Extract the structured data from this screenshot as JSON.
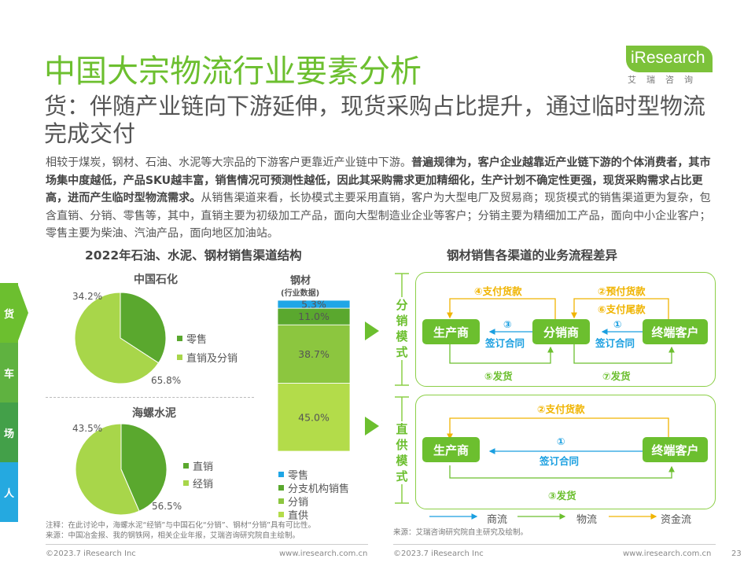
{
  "header": {
    "title": "中国大宗物流行业要素分析",
    "subtitle": "货：伴随产业链向下游延伸，现货采购占比提升，通过临时型物流完成交付",
    "logo_text": "iResearch",
    "logo_cn": "艾瑞咨询"
  },
  "body": {
    "p1": "相较于煤炭，钢材、石油、水泥等大宗品的下游客户更靠近产业链中下游。",
    "p2": "普遍规律为，客户企业越靠近产业链下游的个体消费者，其市场集中度越低，产品SKU越丰富，销售情况可预测性越低，因此其采购需求更加精细化，生产计划不确定性更强，现货采购需求占比更高，进而产生临时型物流需求。",
    "p3": "从销售渠道来看，长协模式主要采用直销，客户为大型电厂及贸易商；现货模式的销售渠道更为复杂，包含直销、分销、零售等，其中，直销主要为初级加工产品，面向大型制造业企业等客户；分销主要为精细加工产品，面向中小企业客户；零售主要为柴油、汽油产品，面向地区加油站。"
  },
  "side_tabs": [
    {
      "label": "货",
      "color": "#6cbf2f"
    },
    {
      "label": "车",
      "color": "#5fb240"
    },
    {
      "label": "场",
      "color": "#43a049"
    },
    {
      "label": "人",
      "color": "#25a9e0"
    }
  ],
  "left_section": {
    "title": "2022年石油、水泥、钢材销售渠道结构",
    "footnote1": "注释：在此讨论中，海螺水泥“经销”与中国石化“分销”、钢材“分销”具有可比性。",
    "footnote2": "来源：中国冶金报、我的钢铁网，相关企业年报，艾瑞咨询研究院自主绘制。"
  },
  "chart_data": [
    {
      "type": "pie",
      "title": "中国石化",
      "categories": [
        "零售",
        "直销及分销"
      ],
      "values": [
        34.2,
        65.8
      ],
      "value_labels": [
        "34.2%",
        "65.8%"
      ],
      "colors": [
        "#5aa82e",
        "#a8d64a"
      ]
    },
    {
      "type": "pie",
      "title": "海螺水泥",
      "categories": [
        "直销",
        "经销"
      ],
      "values": [
        43.5,
        56.5
      ],
      "value_labels": [
        "43.5%",
        "56.5%"
      ],
      "colors": [
        "#5aa82e",
        "#a8d64a"
      ]
    },
    {
      "type": "bar",
      "stacked": true,
      "title": "钢材",
      "subtitle": "(行业数据)",
      "categories": [
        "钢材"
      ],
      "series": [
        {
          "name": "零售",
          "values": [
            5.3
          ],
          "label": "5.3%",
          "color": "#1fa6e6"
        },
        {
          "name": "分支机构销售",
          "values": [
            11.0
          ],
          "label": "11.0%",
          "color": "#5aa82e"
        },
        {
          "name": "分销",
          "values": [
            38.7
          ],
          "label": "38.7%",
          "color": "#8cc63f"
        },
        {
          "name": "直供",
          "values": [
            45.0
          ],
          "label": "45.0%",
          "color": "#b3dc4a"
        }
      ],
      "ylim": [
        0,
        100
      ]
    }
  ],
  "right_section": {
    "title": "钢材销售各渠道的业务流程差异",
    "distribution_label": "分销模式",
    "direct_label": "直供模式",
    "nodes": {
      "producer": "生产商",
      "distributor": "分销商",
      "customer": "终端客户"
    },
    "dist_flow": {
      "pay_goods": "④支付货款",
      "prepay": "②预付货款",
      "pay_final": "⑥支付尾款",
      "contract_num_left": "③",
      "contract_left": "签订合同",
      "contract_num_right": "①",
      "contract_right": "签订合同",
      "ship_left": "⑤发货",
      "ship_right": "⑦发货"
    },
    "direct_flow": {
      "pay": "②支付货款",
      "contract_num": "①",
      "contract": "签订合同",
      "ship": "③发货"
    },
    "legend": {
      "business": "商流",
      "logistics": "物流",
      "capital": "资金流"
    },
    "source": "来源：艾瑞咨询研究院自主研究及绘制。"
  },
  "footer": {
    "copyright": "©2023.7 iResearch Inc",
    "url": "www.iresearch.com.cn",
    "page": "23"
  }
}
